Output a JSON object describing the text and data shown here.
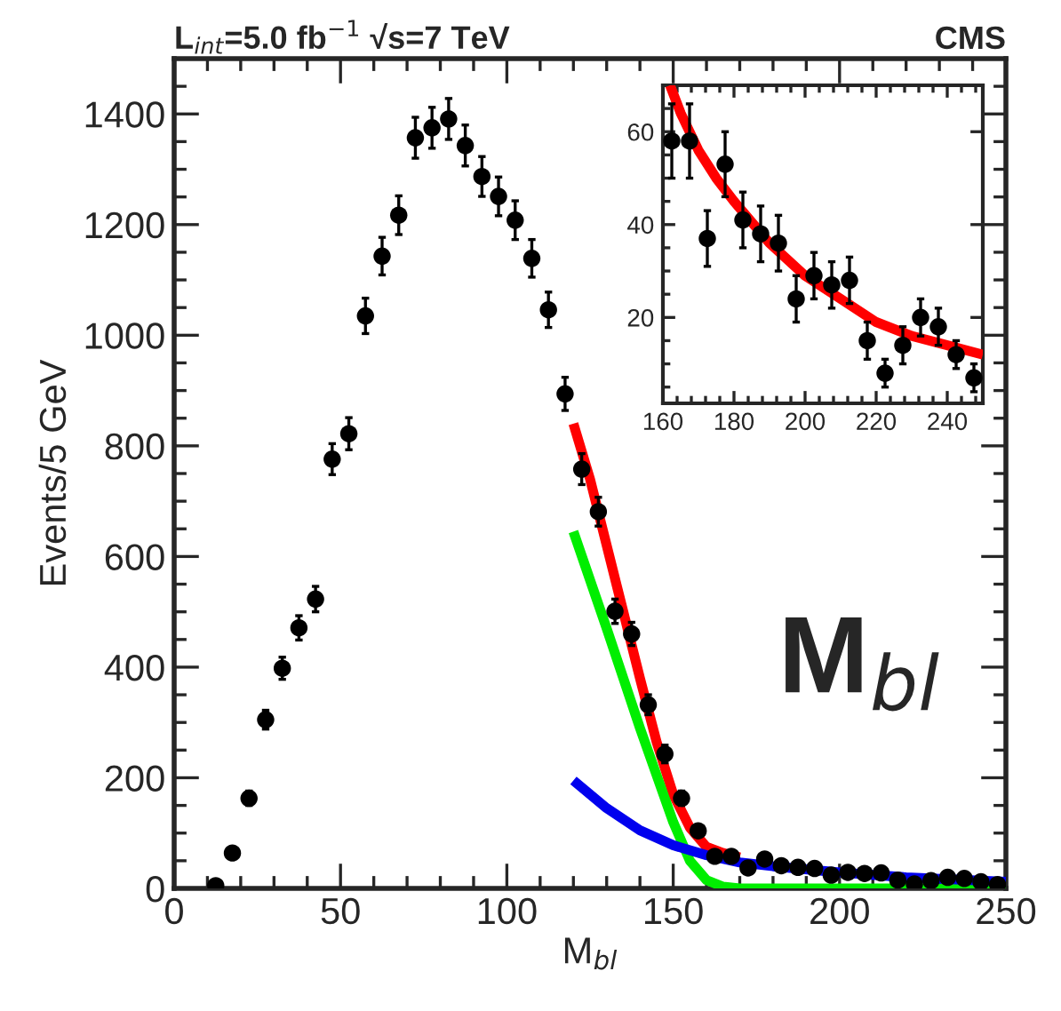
{
  "chart_data": [
    {
      "type": "scatter",
      "title": "L$_{int}$=5.0 fb$^{−1}$ √s=7 TeV",
      "xlabel": "M$_{bl}$",
      "ylabel": "Events/5 GeV",
      "annotations": [
        "CMS",
        "M$_{bl}$"
      ],
      "xlim": [
        0,
        250
      ],
      "xticks": [
        0,
        50,
        100,
        150,
        200,
        250
      ],
      "ylim": [
        0,
        1500
      ],
      "yticks": [
        0,
        200,
        400,
        600,
        800,
        1000,
        1200,
        1400
      ],
      "grid": false,
      "legend": false,
      "series": [
        {
          "marker": "circle",
          "color": "#000000",
          "x": [
            12.5,
            17.5,
            22.5,
            27.5,
            32.5,
            37.5,
            42.5,
            47.5,
            52.5,
            57.5,
            62.5,
            67.5,
            72.5,
            77.5,
            82.5,
            87.5,
            92.5,
            97.5,
            102.5,
            107.5,
            112.5,
            117.5,
            122.5,
            127.5,
            132.5,
            137.5,
            142.5,
            147.5,
            152.5,
            157.5,
            162.5,
            167.5,
            172.5,
            177.5,
            182.5,
            187.5,
            192.5,
            197.5,
            202.5,
            207.5,
            212.5,
            217.5,
            222.5,
            227.5,
            232.5,
            237.5,
            242.5,
            247.5
          ],
          "values": [
            5,
            64,
            163,
            305,
            398,
            471,
            523,
            776,
            822,
            1035,
            1143,
            1217,
            1357,
            1375,
            1391,
            1343,
            1287,
            1251,
            1208,
            1139,
            1046,
            894,
            758,
            681,
            501,
            460,
            332,
            243,
            163,
            104,
            58,
            58,
            37,
            53,
            41,
            38,
            36,
            24,
            29,
            27,
            28,
            15,
            8,
            14,
            20,
            18,
            12,
            7
          ],
          "errors": [
            2,
            8,
            13,
            17,
            20,
            22,
            23,
            28,
            29,
            32,
            34,
            35,
            37,
            37,
            37,
            37,
            36,
            35,
            35,
            34,
            32,
            30,
            28,
            26,
            22,
            21,
            18,
            16,
            13,
            10,
            8,
            8,
            6,
            7,
            6,
            6,
            6,
            5,
            5,
            5,
            5,
            4,
            3,
            4,
            4,
            4,
            3,
            3
          ]
        },
        {
          "type": "line",
          "color": "#ff0000",
          "x": [
            120,
            125,
            130,
            135,
            140,
            145,
            150,
            155,
            160,
            165,
            170
          ],
          "values": [
            840,
            740,
            620,
            500,
            380,
            265,
            170,
            110,
            75,
            64,
            56
          ]
        },
        {
          "type": "line",
          "color": "#00ee00",
          "x": [
            120,
            130,
            140,
            150,
            155,
            160,
            165,
            170,
            180,
            200,
            250
          ],
          "values": [
            645,
            470,
            290,
            120,
            50,
            15,
            3,
            0,
            0,
            0,
            0
          ]
        },
        {
          "type": "line",
          "color": "#0000ee",
          "x": [
            120,
            130,
            140,
            150,
            160,
            170,
            180,
            200,
            220,
            250
          ],
          "values": [
            195,
            145,
            105,
            78,
            60,
            47,
            40,
            29,
            20,
            12
          ]
        }
      ]
    },
    {
      "type": "scatter",
      "xlim": [
        160,
        250
      ],
      "xticks": [
        160,
        180,
        200,
        220,
        240
      ],
      "ylim": [
        1.5,
        70
      ],
      "yticks": [
        20,
        40,
        60
      ],
      "grid": false,
      "legend": false,
      "series": [
        {
          "marker": "circle",
          "color": "#000000",
          "x": [
            162.5,
            167.5,
            172.5,
            177.5,
            182.5,
            187.5,
            192.5,
            197.5,
            202.5,
            207.5,
            212.5,
            217.5,
            222.5,
            227.5,
            232.5,
            237.5,
            242.5,
            247.5
          ],
          "values": [
            58,
            58,
            37,
            53,
            41,
            38,
            36,
            24,
            29,
            27,
            28,
            15,
            8,
            14,
            20,
            18,
            12,
            7
          ],
          "errors": [
            8,
            8,
            6,
            7,
            6,
            6,
            6,
            5,
            5,
            5,
            5,
            4,
            3,
            4,
            4,
            4,
            3,
            3
          ]
        },
        {
          "type": "line",
          "color": "#ff0000",
          "x": [
            162,
            165,
            170,
            175,
            180,
            190,
            200,
            210,
            220,
            230,
            240,
            250
          ],
          "values": [
            70,
            64,
            56,
            50,
            45,
            36,
            29,
            24,
            19,
            16,
            14,
            12
          ]
        }
      ]
    }
  ]
}
